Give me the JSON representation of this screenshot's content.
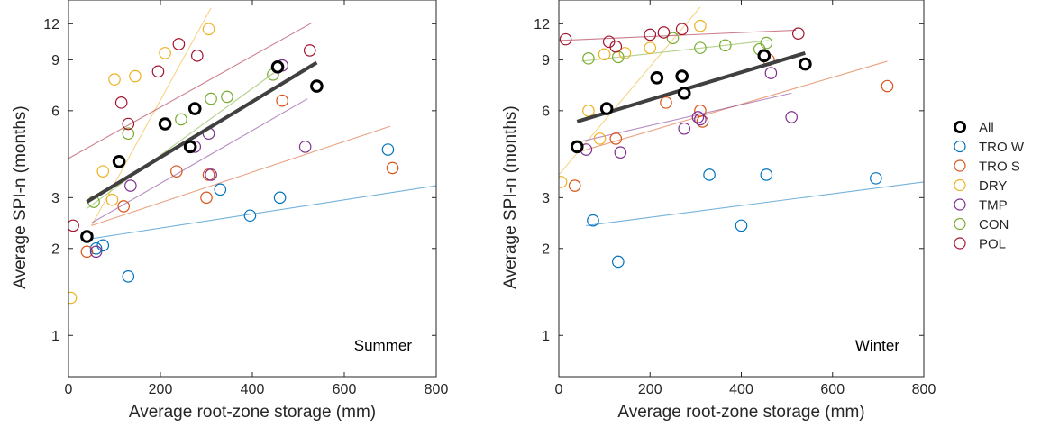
{
  "legend": [
    {
      "key": "all",
      "label": "All",
      "color": "#000000"
    },
    {
      "key": "tro_w",
      "label": "TRO W",
      "color": "#0072BD"
    },
    {
      "key": "tro_s",
      "label": "TRO S",
      "color": "#D95319"
    },
    {
      "key": "dry",
      "label": "DRY",
      "color": "#EDB120"
    },
    {
      "key": "tmp",
      "label": "TMP",
      "color": "#7E2F8E"
    },
    {
      "key": "con",
      "label": "CON",
      "color": "#77AC30"
    },
    {
      "key": "pol",
      "label": "POL",
      "color": "#A2142F"
    }
  ],
  "chart_data": [
    {
      "type": "scatter",
      "panel_label": "Summer",
      "xlabel": "Average root-zone storage (mm)",
      "ylabel": "Average SPI-n (months)",
      "xlim": [
        0,
        800
      ],
      "y_scale": "log",
      "ylim": [
        0.72,
        14.5
      ],
      "xticks": [
        0,
        200,
        400,
        600,
        800
      ],
      "yticks": [
        1,
        2,
        3,
        6,
        9,
        12
      ],
      "grid": false,
      "series": [
        {
          "key": "tro_w",
          "points": [
            [
              60,
              2.0
            ],
            [
              75,
              2.05
            ],
            [
              130,
              1.6
            ],
            [
              330,
              3.2
            ],
            [
              395,
              2.6
            ],
            [
              460,
              3.0
            ],
            [
              695,
              4.4
            ]
          ],
          "fit": [
            [
              40,
              2.15
            ],
            [
              800,
              3.3
            ]
          ]
        },
        {
          "key": "tro_s",
          "points": [
            [
              40,
              1.95
            ],
            [
              120,
              2.8
            ],
            [
              235,
              3.7
            ],
            [
              300,
              3.0
            ],
            [
              305,
              3.6
            ],
            [
              465,
              6.5
            ],
            [
              705,
              3.8
            ]
          ],
          "fit": [
            [
              50,
              2.4
            ],
            [
              700,
              5.3
            ]
          ]
        },
        {
          "key": "dry",
          "points": [
            [
              5,
              1.35
            ],
            [
              75,
              3.7
            ],
            [
              95,
              2.95
            ],
            [
              100,
              7.7
            ],
            [
              145,
              7.9
            ],
            [
              210,
              9.5
            ],
            [
              305,
              11.5
            ]
          ],
          "fit": [
            [
              50,
              2.4
            ],
            [
              310,
              13.6
            ]
          ]
        },
        {
          "key": "tmp",
          "points": [
            [
              60,
              1.95
            ],
            [
              135,
              3.3
            ],
            [
              275,
              4.5
            ],
            [
              305,
              5.0
            ],
            [
              310,
              3.6
            ],
            [
              465,
              8.6
            ],
            [
              515,
              4.5
            ]
          ],
          "fit": [
            [
              50,
              2.45
            ],
            [
              520,
              6.6
            ]
          ]
        },
        {
          "key": "con",
          "points": [
            [
              55,
              2.9
            ],
            [
              130,
              5.0
            ],
            [
              245,
              5.6
            ],
            [
              310,
              6.6
            ],
            [
              345,
              6.7
            ],
            [
              445,
              8.0
            ]
          ],
          "fit": [
            [
              40,
              2.75
            ],
            [
              460,
              8.4
            ]
          ]
        },
        {
          "key": "pol",
          "points": [
            [
              10,
              2.4
            ],
            [
              115,
              6.4
            ],
            [
              130,
              5.4
            ],
            [
              195,
              8.2
            ],
            [
              240,
              10.2
            ],
            [
              280,
              9.3
            ],
            [
              525,
              9.7
            ]
          ],
          "fit": [
            [
              0,
              4.1
            ],
            [
              530,
              12.1
            ]
          ]
        },
        {
          "key": "all",
          "points": [
            [
              40,
              2.2
            ],
            [
              110,
              4.0
            ],
            [
              210,
              5.4
            ],
            [
              265,
              4.5
            ],
            [
              275,
              6.1
            ],
            [
              455,
              8.5
            ],
            [
              540,
              7.3
            ]
          ],
          "fit": [
            [
              40,
              2.9
            ],
            [
              540,
              8.8
            ]
          ]
        }
      ]
    },
    {
      "type": "scatter",
      "panel_label": "Winter",
      "xlabel": "Average root-zone storage (mm)",
      "ylabel": "Average SPI-n (months)",
      "xlim": [
        0,
        800
      ],
      "y_scale": "log",
      "ylim": [
        0.72,
        14.5
      ],
      "xticks": [
        0,
        200,
        400,
        600,
        800
      ],
      "yticks": [
        1,
        2,
        3,
        6,
        9,
        12
      ],
      "grid": false,
      "series": [
        {
          "key": "tro_w",
          "points": [
            [
              75,
              2.5
            ],
            [
              130,
              1.8
            ],
            [
              330,
              3.6
            ],
            [
              400,
              2.4
            ],
            [
              455,
              3.6
            ],
            [
              695,
              3.5
            ]
          ],
          "fit": [
            [
              60,
              2.4
            ],
            [
              800,
              3.4
            ]
          ]
        },
        {
          "key": "tro_s",
          "points": [
            [
              35,
              3.3
            ],
            [
              125,
              4.8
            ],
            [
              235,
              6.4
            ],
            [
              310,
              6.0
            ],
            [
              315,
              5.5
            ],
            [
              460,
              9.0
            ],
            [
              720,
              7.3
            ]
          ],
          "fit": [
            [
              40,
              4.3
            ],
            [
              720,
              8.9
            ]
          ]
        },
        {
          "key": "dry",
          "points": [
            [
              5,
              3.4
            ],
            [
              65,
              6.0
            ],
            [
              90,
              4.8
            ],
            [
              100,
              9.4
            ],
            [
              145,
              9.5
            ],
            [
              200,
              9.9
            ],
            [
              310,
              11.8
            ]
          ],
          "fit": [
            [
              0,
              3.6
            ],
            [
              310,
              13.7
            ]
          ]
        },
        {
          "key": "tmp",
          "points": [
            [
              60,
              4.4
            ],
            [
              135,
              4.3
            ],
            [
              275,
              5.2
            ],
            [
              305,
              5.7
            ],
            [
              310,
              5.6
            ],
            [
              465,
              8.1
            ],
            [
              510,
              5.7
            ]
          ],
          "fit": [
            [
              50,
              4.7
            ],
            [
              510,
              6.9
            ]
          ]
        },
        {
          "key": "con",
          "points": [
            [
              65,
              9.1
            ],
            [
              130,
              9.2
            ],
            [
              250,
              10.7
            ],
            [
              310,
              9.9
            ],
            [
              365,
              10.1
            ],
            [
              440,
              9.8
            ],
            [
              455,
              10.3
            ]
          ],
          "fit": [
            [
              50,
              8.9
            ],
            [
              460,
              10.5
            ]
          ]
        },
        {
          "key": "pol",
          "points": [
            [
              15,
              10.6
            ],
            [
              110,
              10.4
            ],
            [
              125,
              10.0
            ],
            [
              200,
              11.0
            ],
            [
              230,
              11.2
            ],
            [
              270,
              11.5
            ],
            [
              525,
              11.1
            ]
          ],
          "fit": [
            [
              0,
              10.5
            ],
            [
              520,
              11.4
            ]
          ]
        },
        {
          "key": "all",
          "points": [
            [
              40,
              4.5
            ],
            [
              105,
              6.1
            ],
            [
              215,
              7.8
            ],
            [
              270,
              7.9
            ],
            [
              275,
              6.9
            ],
            [
              450,
              9.3
            ],
            [
              540,
              8.7
            ]
          ],
          "fit": [
            [
              40,
              5.5
            ],
            [
              540,
              9.5
            ]
          ]
        }
      ]
    }
  ]
}
